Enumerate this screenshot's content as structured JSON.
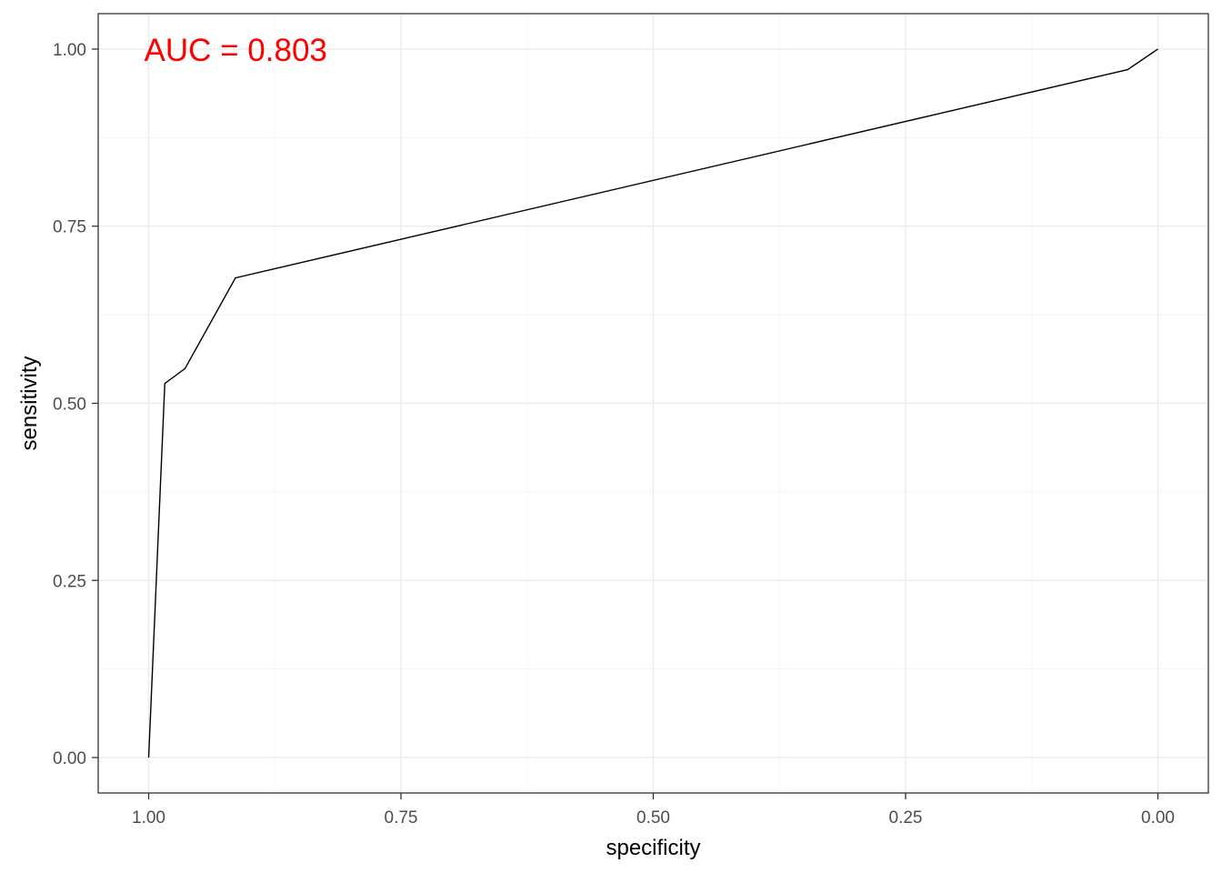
{
  "chart_data": {
    "type": "line",
    "title": "",
    "xlabel": "specificity",
    "ylabel": "sensitivity",
    "x_reversed": true,
    "xlim": [
      1.05,
      -0.05
    ],
    "ylim": [
      -0.05,
      1.05
    ],
    "x_ticks": [
      1.0,
      0.75,
      0.5,
      0.25,
      0.0
    ],
    "x_tick_labels": [
      "1.00",
      "0.75",
      "0.50",
      "0.25",
      "0.00"
    ],
    "y_ticks": [
      0.0,
      0.25,
      0.5,
      0.75,
      1.0
    ],
    "y_tick_labels": [
      "0.00",
      "0.25",
      "0.50",
      "0.75",
      "1.00"
    ],
    "grid": true,
    "series": [
      {
        "x": [
          1.0,
          0.984,
          0.964,
          0.914,
          0.03,
          0.0
        ],
        "y": [
          0.0,
          0.528,
          0.549,
          0.677,
          0.971,
          1.0
        ]
      }
    ],
    "annotations": [
      {
        "text": "AUC =  0.803",
        "color": "#ff0000",
        "x": 1.0,
        "y": 1.0
      }
    ]
  }
}
